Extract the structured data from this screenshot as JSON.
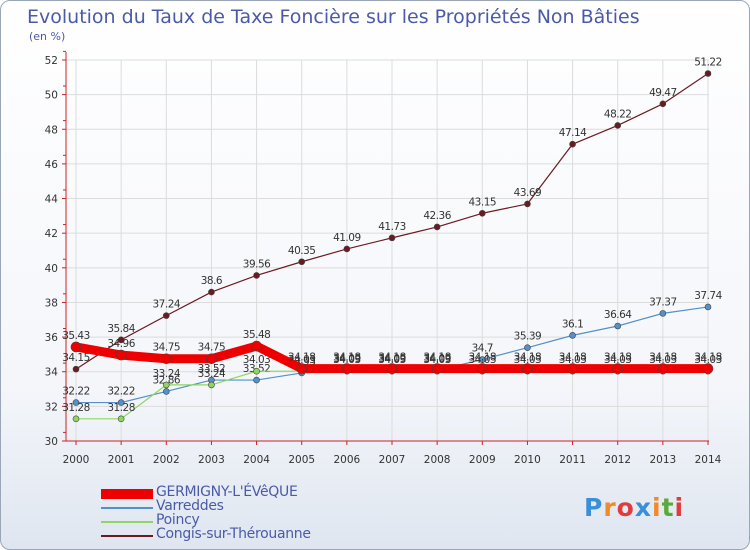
{
  "header": {
    "title": "Evolution du Taux de Taxe Foncière sur les Propriétés Non Bâties",
    "subtitle": "(en %)"
  },
  "logo": {
    "text": "Proxiti"
  },
  "colors": {
    "axis": "#cc2222",
    "grid": "#dcdcdc",
    "text": "#4a5aa8"
  },
  "chart_data": {
    "type": "line",
    "title": "Evolution du Taux de Taxe Foncière sur les Propriétés Non Bâties",
    "ylabel": "(en %)",
    "xlabel": "",
    "x": [
      "2000",
      "2001",
      "2002",
      "2003",
      "2004",
      "2005",
      "2006",
      "2007",
      "2008",
      "2009",
      "2010",
      "2011",
      "2012",
      "2013",
      "2014"
    ],
    "ylim": [
      30,
      52
    ],
    "yticks": [
      30,
      32,
      34,
      36,
      38,
      40,
      42,
      44,
      46,
      48,
      50,
      52
    ],
    "grid": true,
    "legend_position": "bottom-left",
    "series": [
      {
        "name": "Congis-sur-Thérouanne",
        "color": "#6b1a22",
        "values": [
          34.15,
          35.84,
          37.24,
          38.6,
          39.56,
          40.35,
          41.09,
          41.73,
          42.36,
          43.15,
          43.69,
          47.14,
          48.22,
          49.47,
          51.22
        ],
        "labels": [
          "34.15",
          "35.84",
          "37.24",
          "38.6",
          "39.56",
          "40.35",
          "41.09",
          "41.73",
          "42.36",
          "43.15",
          "43.69",
          "47.14",
          "48.22",
          "49.47",
          "51.22"
        ]
      },
      {
        "name": "Varreddes",
        "color": "#5590c8",
        "values": [
          32.22,
          32.22,
          32.86,
          33.52,
          33.52,
          33.93,
          34.09,
          34.09,
          34.09,
          34.7,
          35.39,
          36.1,
          36.64,
          37.37,
          37.74
        ],
        "labels": [
          "32.22",
          "32.22",
          "32.86",
          "33.52",
          "33.52",
          "33.93",
          "34.09",
          "34.09",
          "34.09",
          "34.7",
          "35.39",
          "36.1",
          "36.64",
          "37.37",
          "37.74"
        ]
      },
      {
        "name": "Poincy",
        "color": "#8ed660",
        "values": [
          31.28,
          31.28,
          33.24,
          33.24,
          34.03,
          34.03,
          34.03,
          34.03,
          34.03,
          34.03,
          34.03,
          34.03,
          34.03,
          34.03,
          34.03
        ],
        "labels": [
          "31.28",
          "31.28",
          "33.24",
          "33.24",
          "34.03",
          "34.03",
          "34.03",
          "34.03",
          "34.03",
          "34.03",
          "34.03",
          "34.03",
          "34.03",
          "34.03",
          "34.03"
        ]
      },
      {
        "name": "GERMIGNY-L'ÉVêQUE",
        "color": "#ee0000",
        "values": [
          35.43,
          34.96,
          34.75,
          34.75,
          35.48,
          34.18,
          34.18,
          34.18,
          34.18,
          34.18,
          34.18,
          34.18,
          34.18,
          34.18,
          34.18
        ],
        "labels": [
          "35.43",
          "34.96",
          "34.75",
          "34.75",
          "35.48",
          "34.18",
          "34.18",
          "34.18",
          "34.18",
          "34.18",
          "34.18",
          "34.18",
          "34.18",
          "34.18",
          "34.18"
        ]
      }
    ]
  },
  "legend": {
    "items": [
      {
        "label": "GERMIGNY-L'ÉVêQUE",
        "color": "#ee0000"
      },
      {
        "label": "Varreddes",
        "color": "#5590c8"
      },
      {
        "label": "Poincy",
        "color": "#8ed660"
      },
      {
        "label": "Congis-sur-Thérouanne",
        "color": "#6b1a22"
      }
    ]
  }
}
